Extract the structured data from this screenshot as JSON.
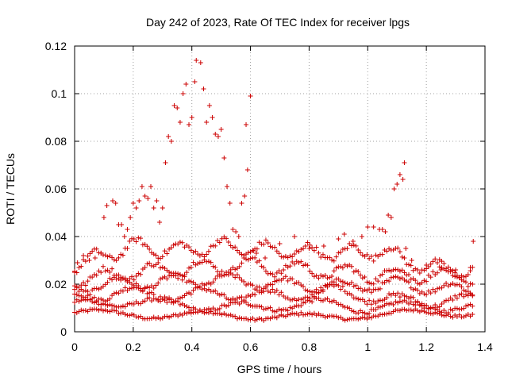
{
  "chart_data": {
    "type": "scatter",
    "title": "Day 242 of 2023, Rate Of TEC Index for receiver lpgs",
    "xlabel": "GPS time / hours",
    "ylabel": "ROTI / TECUs",
    "xlim": [
      0,
      1.4
    ],
    "ylim": [
      0,
      0.12
    ],
    "xticks": [
      "0",
      "0.2",
      "0.4",
      "0.6",
      "0.8",
      "1",
      "1.2",
      "1.4"
    ],
    "yticks": [
      "0",
      "0.02",
      "0.04",
      "0.06",
      "0.08",
      "0.1",
      "0.12"
    ],
    "grid": true,
    "marker": "+",
    "marker_color": "#cc0000",
    "band_series": [
      {
        "centers": [
          [
            0,
            0.008
          ],
          [
            0.3,
            0.007
          ],
          [
            0.5,
            0.007
          ],
          [
            0.8,
            0.006
          ],
          [
            1.0,
            0.007
          ],
          [
            1.2,
            0.008
          ],
          [
            1.36,
            0.008
          ]
        ],
        "spread": 0.0015
      },
      {
        "centers": [
          [
            0,
            0.011
          ],
          [
            0.2,
            0.013
          ],
          [
            0.4,
            0.011
          ],
          [
            0.6,
            0.01
          ],
          [
            0.8,
            0.012
          ],
          [
            1.0,
            0.01
          ],
          [
            1.2,
            0.011
          ],
          [
            1.36,
            0.01
          ]
        ],
        "spread": 0.002
      },
      {
        "centers": [
          [
            0,
            0.014
          ],
          [
            0.15,
            0.017
          ],
          [
            0.3,
            0.015
          ],
          [
            0.5,
            0.016
          ],
          [
            0.7,
            0.015
          ],
          [
            0.9,
            0.017
          ],
          [
            1.1,
            0.013
          ],
          [
            1.36,
            0.013
          ]
        ],
        "spread": 0.0025
      },
      {
        "centers": [
          [
            0,
            0.018
          ],
          [
            0.1,
            0.02
          ],
          [
            0.3,
            0.021
          ],
          [
            0.5,
            0.022
          ],
          [
            0.7,
            0.02
          ],
          [
            0.9,
            0.019
          ],
          [
            1.1,
            0.02
          ],
          [
            1.36,
            0.017
          ]
        ],
        "spread": 0.0025
      },
      {
        "centers": [
          [
            0,
            0.022
          ],
          [
            0.2,
            0.025
          ],
          [
            0.4,
            0.027
          ],
          [
            0.6,
            0.028
          ],
          [
            0.8,
            0.026
          ],
          [
            1.0,
            0.024
          ],
          [
            1.2,
            0.024
          ],
          [
            1.36,
            0.023
          ]
        ],
        "spread": 0.003
      },
      {
        "centers": [
          [
            0,
            0.028
          ],
          [
            0.1,
            0.032
          ],
          [
            0.2,
            0.036
          ],
          [
            0.35,
            0.034
          ],
          [
            0.5,
            0.036
          ],
          [
            0.7,
            0.034
          ],
          [
            0.9,
            0.033
          ],
          [
            1.05,
            0.034
          ],
          [
            1.2,
            0.027
          ],
          [
            1.36,
            0.025
          ]
        ],
        "spread": 0.003
      }
    ],
    "peak_points": [
      [
        0.0,
        0.025
      ],
      [
        0.01,
        0.029
      ],
      [
        0.03,
        0.032
      ],
      [
        0.05,
        0.03
      ],
      [
        0.07,
        0.031
      ],
      [
        0.09,
        0.033
      ],
      [
        0.1,
        0.048
      ],
      [
        0.11,
        0.053
      ],
      [
        0.13,
        0.055
      ],
      [
        0.14,
        0.054
      ],
      [
        0.15,
        0.045
      ],
      [
        0.16,
        0.045
      ],
      [
        0.17,
        0.04
      ],
      [
        0.18,
        0.043
      ],
      [
        0.19,
        0.048
      ],
      [
        0.2,
        0.054
      ],
      [
        0.21,
        0.052
      ],
      [
        0.22,
        0.055
      ],
      [
        0.23,
        0.061
      ],
      [
        0.24,
        0.057
      ],
      [
        0.25,
        0.056
      ],
      [
        0.26,
        0.061
      ],
      [
        0.27,
        0.052
      ],
      [
        0.28,
        0.055
      ],
      [
        0.29,
        0.046
      ],
      [
        0.3,
        0.052
      ],
      [
        0.31,
        0.071
      ],
      [
        0.32,
        0.082
      ],
      [
        0.33,
        0.08
      ],
      [
        0.34,
        0.095
      ],
      [
        0.35,
        0.094
      ],
      [
        0.36,
        0.088
      ],
      [
        0.37,
        0.1
      ],
      [
        0.38,
        0.104
      ],
      [
        0.39,
        0.087
      ],
      [
        0.4,
        0.09
      ],
      [
        0.41,
        0.105
      ],
      [
        0.415,
        0.114
      ],
      [
        0.43,
        0.113
      ],
      [
        0.44,
        0.102
      ],
      [
        0.45,
        0.088
      ],
      [
        0.46,
        0.095
      ],
      [
        0.47,
        0.09
      ],
      [
        0.48,
        0.083
      ],
      [
        0.49,
        0.082
      ],
      [
        0.5,
        0.085
      ],
      [
        0.51,
        0.073
      ],
      [
        0.52,
        0.061
      ],
      [
        0.53,
        0.054
      ],
      [
        0.54,
        0.043
      ],
      [
        0.55,
        0.042
      ],
      [
        0.56,
        0.04
      ],
      [
        0.57,
        0.054
      ],
      [
        0.58,
        0.057
      ],
      [
        0.585,
        0.087
      ],
      [
        0.59,
        0.068
      ],
      [
        0.6,
        0.099
      ],
      [
        0.61,
        0.034
      ],
      [
        0.62,
        0.033
      ],
      [
        0.65,
        0.031
      ],
      [
        0.7,
        0.037
      ],
      [
        0.75,
        0.04
      ],
      [
        0.8,
        0.035
      ],
      [
        0.85,
        0.036
      ],
      [
        0.9,
        0.039
      ],
      [
        0.92,
        0.041
      ],
      [
        0.95,
        0.038
      ],
      [
        0.98,
        0.04
      ],
      [
        1.0,
        0.044
      ],
      [
        1.02,
        0.044
      ],
      [
        1.04,
        0.043
      ],
      [
        1.05,
        0.043
      ],
      [
        1.06,
        0.042
      ],
      [
        1.07,
        0.049
      ],
      [
        1.08,
        0.048
      ],
      [
        1.09,
        0.06
      ],
      [
        1.1,
        0.062
      ],
      [
        1.11,
        0.066
      ],
      [
        1.12,
        0.064
      ],
      [
        1.125,
        0.071
      ],
      [
        1.13,
        0.035
      ],
      [
        1.15,
        0.03
      ],
      [
        1.2,
        0.028
      ],
      [
        1.25,
        0.026
      ],
      [
        1.3,
        0.026
      ],
      [
        1.35,
        0.027
      ],
      [
        1.36,
        0.038
      ]
    ]
  }
}
